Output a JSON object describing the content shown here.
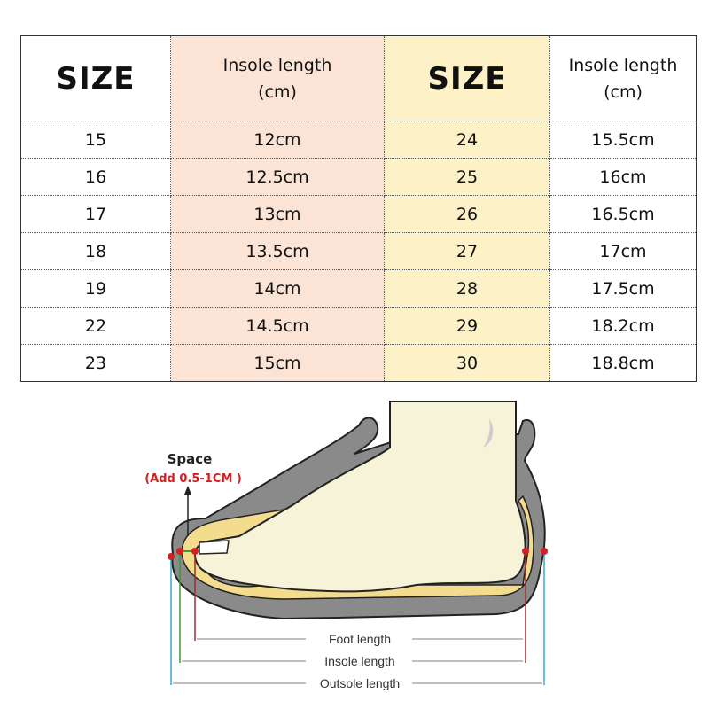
{
  "table": {
    "headers": [
      "SIZE",
      "Insole length\n(cm)",
      "SIZE",
      "Insole length\n(cm)"
    ],
    "header_insole_line1": "Insole length",
    "header_insole_line2": "(cm)",
    "header_size": "SIZE",
    "rows": [
      [
        "15",
        "12cm",
        "24",
        "15.5cm"
      ],
      [
        "16",
        "12.5cm",
        "25",
        "16cm"
      ],
      [
        "17",
        "13cm",
        "26",
        "16.5cm"
      ],
      [
        "18",
        "13.5cm",
        "27",
        "17cm"
      ],
      [
        "19",
        "14cm",
        "28",
        "17.5cm"
      ],
      [
        "22",
        "14.5cm",
        "29",
        "18.2cm"
      ],
      [
        "23",
        "15cm",
        "30",
        "18.8cm"
      ]
    ],
    "colors": {
      "insole_col_1": "#fbe3d6",
      "size_col_2": "#fdf1c8"
    }
  },
  "diagram": {
    "space_label": "Space",
    "space_note": "(Add 0.5-1CM )",
    "foot_length": "Foot length",
    "insole_length": "Insole length",
    "outsole_length": "Outsole length",
    "colors": {
      "note": "#d42020",
      "sole": "#8a8a8a",
      "foot": "#f7f3d9",
      "insole": "#f3dc8e"
    }
  }
}
